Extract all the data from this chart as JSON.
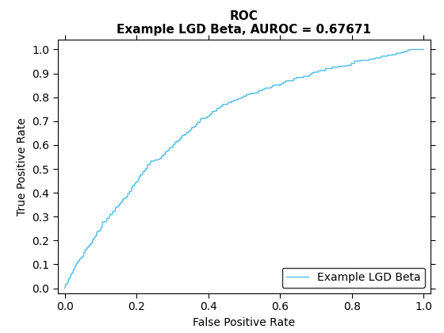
{
  "title_line1": "ROC",
  "title_line2": "Example LGD Beta, AUROC = 0.67671",
  "xlabel": "False Positive Rate",
  "ylabel": "True Positive Rate",
  "legend_label": "Example LGD Beta",
  "line_color": "#4DBEEE",
  "xlim": [
    -0.02,
    1.02
  ],
  "ylim": [
    -0.02,
    1.04
  ],
  "xticks": [
    0,
    0.2,
    0.4,
    0.6,
    0.8,
    1.0
  ],
  "yticks": [
    0,
    0.1,
    0.2,
    0.3,
    0.4,
    0.5,
    0.6,
    0.7,
    0.8,
    0.9,
    1.0
  ],
  "background_color": "#ffffff",
  "key_fpr": [
    0,
    0.03,
    0.07,
    0.1,
    0.13,
    0.18,
    0.23,
    0.27,
    0.32,
    0.37,
    0.4,
    0.44,
    0.5,
    0.6,
    0.7,
    0.8,
    0.9,
    1.0
  ],
  "key_tpr": [
    0,
    0.09,
    0.175,
    0.245,
    0.305,
    0.395,
    0.505,
    0.545,
    0.615,
    0.685,
    0.715,
    0.755,
    0.795,
    0.845,
    0.895,
    0.93,
    0.965,
    1.0
  ],
  "noise_std": 0.006,
  "seed": 42,
  "n_dense": 2000,
  "title_fontsize": 11,
  "label_fontsize": 10,
  "tick_fontsize": 10,
  "legend_fontsize": 10,
  "linewidth": 1.0
}
